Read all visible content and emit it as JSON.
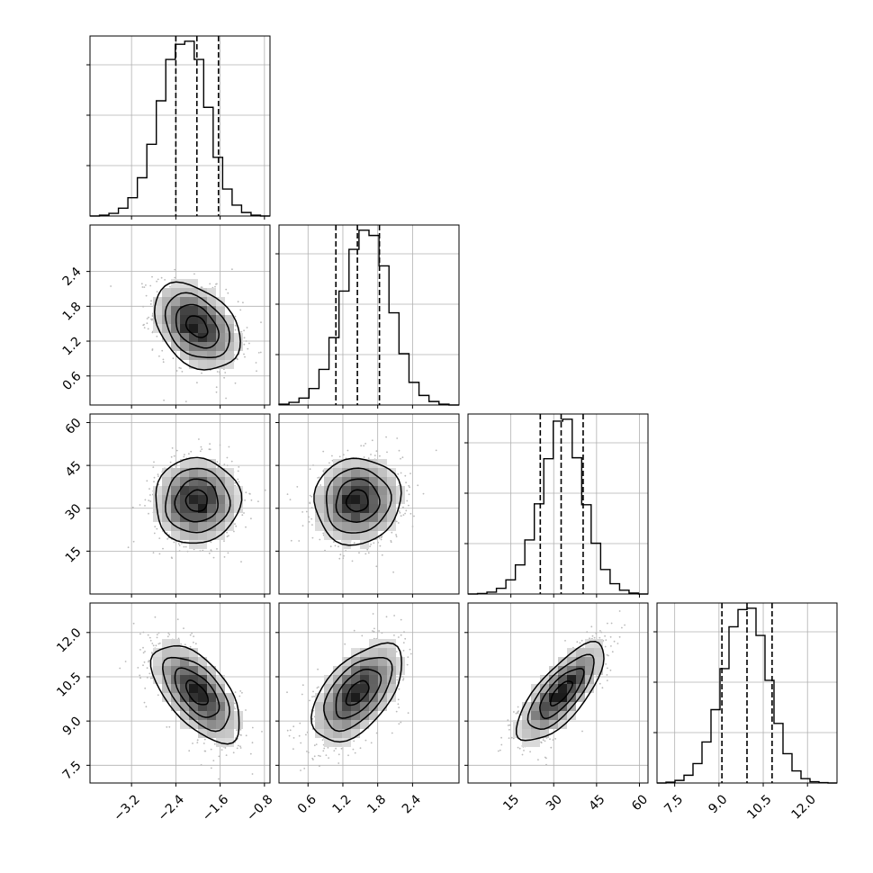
{
  "chart_data": {
    "type": "corner",
    "title": "",
    "parameters": [
      {
        "index": 0,
        "range": [
          -3.95,
          -0.7
        ],
        "ticks": [
          -3.2,
          -2.4,
          -1.6,
          -0.8
        ],
        "tick_labels": [
          "−3.2",
          "−2.4",
          "−1.6",
          "−0.8"
        ],
        "quantiles": [
          -2.4,
          -2.02,
          -1.63
        ],
        "histogram_counts": [
          0,
          2,
          6,
          18,
          42,
          88,
          165,
          265,
          360,
          395,
          402,
          360,
          250,
          135,
          62,
          25,
          8,
          2,
          0
        ]
      },
      {
        "index": 1,
        "range": [
          0.1,
          3.2
        ],
        "ticks": [
          0.6,
          1.2,
          1.8,
          2.4
        ],
        "tick_labels": [
          "0.6",
          "1.2",
          "1.8",
          "2.4"
        ],
        "quantiles": [
          1.08,
          1.45,
          1.83
        ],
        "histogram_counts": [
          2,
          6,
          16,
          38,
          82,
          155,
          262,
          358,
          402,
          390,
          320,
          212,
          118,
          52,
          22,
          8,
          2,
          0
        ]
      },
      {
        "index": 2,
        "range": [
          0,
          63
        ],
        "ticks": [
          15,
          30,
          45,
          60
        ],
        "tick_labels": [
          "15",
          "30",
          "45",
          "60"
        ],
        "quantiles": [
          25.3,
          32.6,
          40.3
        ],
        "histogram_counts": [
          0,
          1,
          4,
          12,
          30,
          62,
          115,
          192,
          288,
          368,
          372,
          290,
          190,
          108,
          52,
          22,
          8,
          2,
          0
        ]
      },
      {
        "index": 3,
        "range": [
          6.9,
          13.0
        ],
        "ticks": [
          7.5,
          9.0,
          10.5,
          12.0
        ],
        "tick_labels": [
          "7.5",
          "9.0",
          "10.5",
          "12.0"
        ],
        "quantiles": [
          9.1,
          9.95,
          10.8
        ],
        "histogram_counts": [
          0,
          2,
          6,
          18,
          45,
          95,
          170,
          265,
          362,
          402,
          405,
          342,
          238,
          138,
          68,
          28,
          10,
          3,
          1,
          0
        ]
      }
    ],
    "correlations": [
      [
        1.0,
        -0.35,
        0.02,
        -0.6
      ],
      [
        -0.35,
        1.0,
        0.05,
        0.55
      ],
      [
        0.02,
        0.05,
        1.0,
        0.75
      ],
      [
        -0.6,
        0.55,
        0.75,
        1.0
      ]
    ],
    "contour_levels": [
      "0.5-sigma",
      "1-sigma",
      "1.5-sigma",
      "2-sigma"
    ],
    "grid": true,
    "quantile_line_style": "dashed",
    "colors": {
      "histogram": "#000000",
      "contour": "#000000",
      "quantile_line": "#000000",
      "grid": "#b0b0b0",
      "scatter": "#b9b9b9"
    }
  }
}
